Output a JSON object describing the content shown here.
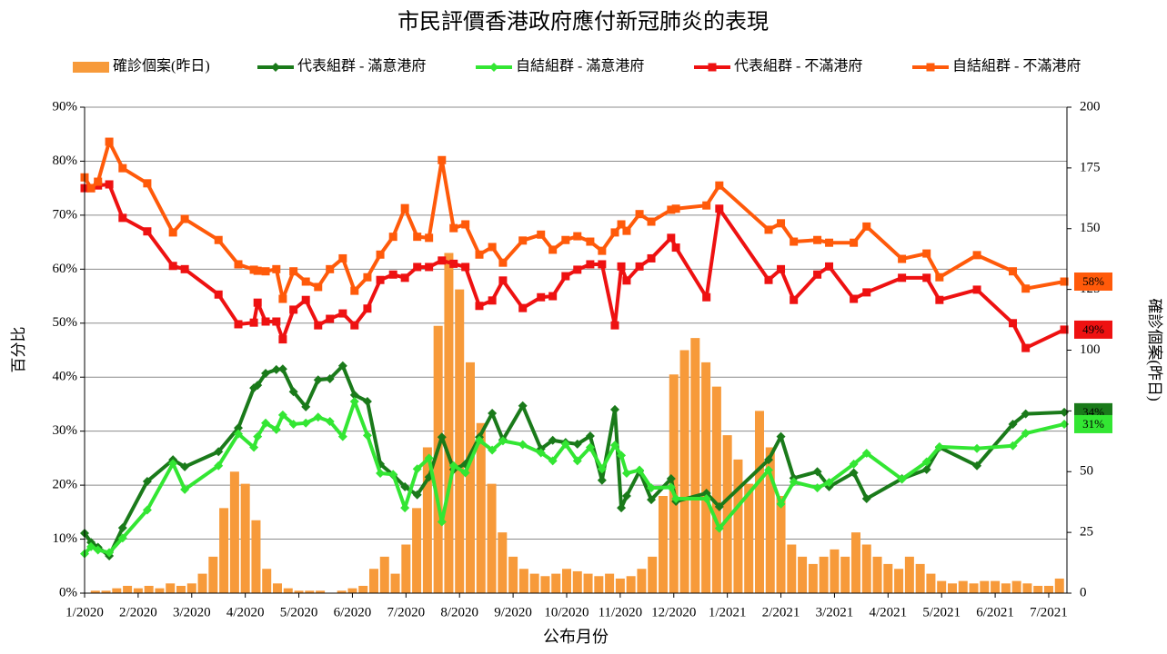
{
  "chart_data": {
    "type": "combo",
    "title": "市民評價香港政府應付新冠肺炎的表現",
    "x_label": "公布月份",
    "y_label": "百分比",
    "y2_label": "確診個案(昨日)",
    "xlim": [
      0,
      18.34
    ],
    "xticks": [
      {
        "value": 0,
        "label": "1/2020"
      },
      {
        "value": 1,
        "label": "2/2020"
      },
      {
        "value": 2,
        "label": "3/2020"
      },
      {
        "value": 3,
        "label": "4/2020"
      },
      {
        "value": 4,
        "label": "5/2020"
      },
      {
        "value": 5,
        "label": "6/2020"
      },
      {
        "value": 6,
        "label": "7/2020"
      },
      {
        "value": 7,
        "label": "8/2020"
      },
      {
        "value": 8,
        "label": "9/2020"
      },
      {
        "value": 9,
        "label": "10/2020"
      },
      {
        "value": 10,
        "label": "11/2020"
      },
      {
        "value": 11,
        "label": "12/2020"
      },
      {
        "value": 12,
        "label": "1/2021"
      },
      {
        "value": 13,
        "label": "2/2021"
      },
      {
        "value": 14,
        "label": "3/2021"
      },
      {
        "value": 15,
        "label": "4/2021"
      },
      {
        "value": 16,
        "label": "5/2021"
      },
      {
        "value": 17,
        "label": "6/2021"
      },
      {
        "value": 18,
        "label": "7/2021"
      }
    ],
    "ylim": [
      0,
      90
    ],
    "yticks": [
      {
        "value": 0,
        "label": "0%"
      },
      {
        "value": 10,
        "label": "10%"
      },
      {
        "value": 20,
        "label": "20%"
      },
      {
        "value": 30,
        "label": "30%"
      },
      {
        "value": 40,
        "label": "40%"
      },
      {
        "value": 50,
        "label": "50%"
      },
      {
        "value": 60,
        "label": "60%"
      },
      {
        "value": 70,
        "label": "70%"
      },
      {
        "value": 80,
        "label": "80%"
      },
      {
        "value": 90,
        "label": "90%"
      }
    ],
    "y2lim": [
      0,
      200
    ],
    "y2ticks": [
      0,
      25,
      50,
      75,
      100,
      125,
      150,
      175,
      200
    ],
    "grid": true,
    "x": [
      0,
      0.12,
      0.25,
      0.46,
      0.71,
      1.17,
      1.65,
      1.87,
      2.5,
      2.87,
      3.16,
      3.23,
      3.38,
      3.58,
      3.7,
      3.9,
      4.13,
      4.36,
      4.58,
      4.82,
      5.04,
      5.28,
      5.52,
      5.76,
      5.98,
      6.21,
      6.43,
      6.67,
      6.89,
      7.11,
      7.37,
      7.61,
      7.81,
      8.18,
      8.52,
      8.74,
      8.98,
      9.2,
      9.44,
      9.66,
      9.9,
      10.02,
      10.12,
      10.36,
      10.58,
      10.95,
      11.04,
      11.61,
      11.85,
      12.77,
      13.0,
      13.24,
      13.68,
      13.9,
      14.36,
      14.6,
      15.26,
      15.72,
      15.96,
      16.66,
      17.33,
      17.57,
      18.29
    ],
    "series": [
      {
        "name": "確診個案(昨日)",
        "kind": "bar",
        "axis": "y2",
        "color": "#f79a3a",
        "x": [
          0,
          0.2,
          0.4,
          0.6,
          0.8,
          1.0,
          1.2,
          1.4,
          1.6,
          1.8,
          2.0,
          2.2,
          2.4,
          2.6,
          2.8,
          3.0,
          3.2,
          3.4,
          3.6,
          3.8,
          4.0,
          4.2,
          4.4,
          4.6,
          4.8,
          5.0,
          5.2,
          5.4,
          5.6,
          5.8,
          6.0,
          6.2,
          6.4,
          6.6,
          6.8,
          7.0,
          7.2,
          7.4,
          7.6,
          7.8,
          8.0,
          8.2,
          8.4,
          8.6,
          8.8,
          9.0,
          9.2,
          9.4,
          9.6,
          9.8,
          10.0,
          10.2,
          10.4,
          10.6,
          10.8,
          11.0,
          11.2,
          11.4,
          11.6,
          11.8,
          12.0,
          12.2,
          12.4,
          12.6,
          12.8,
          13.0,
          13.2,
          13.4,
          13.6,
          13.8,
          14.0,
          14.2,
          14.4,
          14.6,
          14.8,
          15.0,
          15.2,
          15.4,
          15.6,
          15.8,
          16.0,
          16.2,
          16.4,
          16.6,
          16.8,
          17.0,
          17.2,
          17.4,
          17.6,
          17.8,
          18.0,
          18.2
        ],
        "values": [
          0,
          1,
          1,
          2,
          3,
          2,
          3,
          2,
          4,
          3,
          4,
          8,
          15,
          35,
          50,
          45,
          30,
          10,
          4,
          2,
          1,
          1,
          1,
          0,
          1,
          2,
          3,
          10,
          15,
          8,
          20,
          35,
          60,
          110,
          140,
          125,
          95,
          70,
          45,
          25,
          15,
          10,
          8,
          7,
          8,
          10,
          9,
          8,
          7,
          8,
          6,
          7,
          10,
          15,
          40,
          90,
          100,
          105,
          95,
          85,
          65,
          55,
          45,
          75,
          60,
          40,
          20,
          15,
          12,
          15,
          18,
          15,
          25,
          20,
          15,
          12,
          10,
          15,
          12,
          8,
          5,
          4,
          5,
          4,
          5,
          5,
          4,
          5,
          4,
          3,
          3,
          6
        ]
      },
      {
        "name": "代表組群 - 滿意港府",
        "kind": "line",
        "marker": "diamond",
        "color": "#1a7a1a",
        "end_label": "34%",
        "values": [
          11.1,
          9.4,
          8.5,
          6.9,
          12.1,
          20.7,
          24.7,
          23.4,
          26.2,
          30.6,
          38,
          38.5,
          40.7,
          41.4,
          41.5,
          37.3,
          34.5,
          39.5,
          39.7,
          42.1,
          36.7,
          35.5,
          23.9,
          21.9,
          19.7,
          18.2,
          21.5,
          28.9,
          22.9,
          23.9,
          28.9,
          33.3,
          28.4,
          34.7,
          26.7,
          28.3,
          27.9,
          27.6,
          29.1,
          20.9,
          34,
          15.8,
          18,
          22.6,
          17.3,
          21.2,
          17,
          18.5,
          16,
          24.7,
          29,
          21.3,
          22.5,
          19.7,
          22.3,
          17.5,
          21.2,
          22.9,
          27,
          23.6,
          31.3,
          33.2,
          33.5
        ]
      },
      {
        "name": "自結組群 - 滿意港府",
        "kind": "line",
        "marker": "diamond",
        "color": "#33e633",
        "end_label": "31%",
        "values": [
          7.3,
          8.6,
          8.0,
          7.5,
          10.2,
          15.4,
          24,
          19.2,
          23.6,
          29.5,
          27,
          29,
          31.5,
          30.3,
          33,
          31.3,
          31.5,
          32.6,
          31.8,
          29,
          35.5,
          29.2,
          22.2,
          22,
          15.8,
          23,
          25,
          13.2,
          23.6,
          22.3,
          28.3,
          26.5,
          28.2,
          27.5,
          26,
          24.5,
          27.6,
          24.5,
          27,
          23,
          27.4,
          25.5,
          22.2,
          22.8,
          19.5,
          19.6,
          17.5,
          17.5,
          12,
          22.8,
          16.5,
          20.6,
          19.5,
          20.5,
          23.9,
          25.9,
          21.1,
          24.3,
          27.1,
          26.8,
          27.3,
          29.6,
          31.3
        ]
      },
      {
        "name": "代表組群 - 不滿港府",
        "kind": "line",
        "marker": "square",
        "color": "#ee1111",
        "end_label": "49%",
        "values": [
          75,
          75,
          75.5,
          75.7,
          69.5,
          67,
          60.6,
          60,
          55.3,
          49.8,
          50.1,
          53.8,
          50.3,
          50.3,
          47,
          52.5,
          54.3,
          49.6,
          50.8,
          51.8,
          49.6,
          52.7,
          58,
          59,
          58.4,
          60.4,
          60.4,
          61.6,
          61,
          60.4,
          53.2,
          54.2,
          57.9,
          52.8,
          54.8,
          55,
          58.7,
          59.9,
          60.9,
          60.9,
          49.6,
          60.5,
          57.9,
          60.5,
          62,
          65.8,
          64,
          54.8,
          71.2,
          58,
          60,
          54.3,
          59,
          60.5,
          54.5,
          55.7,
          58.4,
          58.4,
          54.3,
          56.2,
          50,
          45.4,
          48.8
        ]
      },
      {
        "name": "自結組群 - 不滿港府",
        "kind": "line",
        "marker": "square",
        "color": "#ff5a0a",
        "end_label": "58%",
        "values": [
          77,
          75,
          76.2,
          83.6,
          78.7,
          75.9,
          66.8,
          69.3,
          65.4,
          60.9,
          59.9,
          59.7,
          59.6,
          60,
          54.5,
          59.6,
          57.7,
          56.7,
          60,
          62,
          56,
          58.5,
          62.7,
          66,
          71.3,
          66,
          65.8,
          80.2,
          67.6,
          68.3,
          62.7,
          64.1,
          61.2,
          65.3,
          66.4,
          63.6,
          65.4,
          66.1,
          65.1,
          63.4,
          66.8,
          68.3,
          67.1,
          70.2,
          68.8,
          71,
          71.2,
          71.8,
          75.5,
          67.3,
          68.5,
          65.1,
          65.4,
          64.9,
          64.9,
          67.9,
          61.9,
          62.9,
          58.5,
          62.6,
          59.6,
          56.4,
          57.7
        ]
      }
    ]
  }
}
